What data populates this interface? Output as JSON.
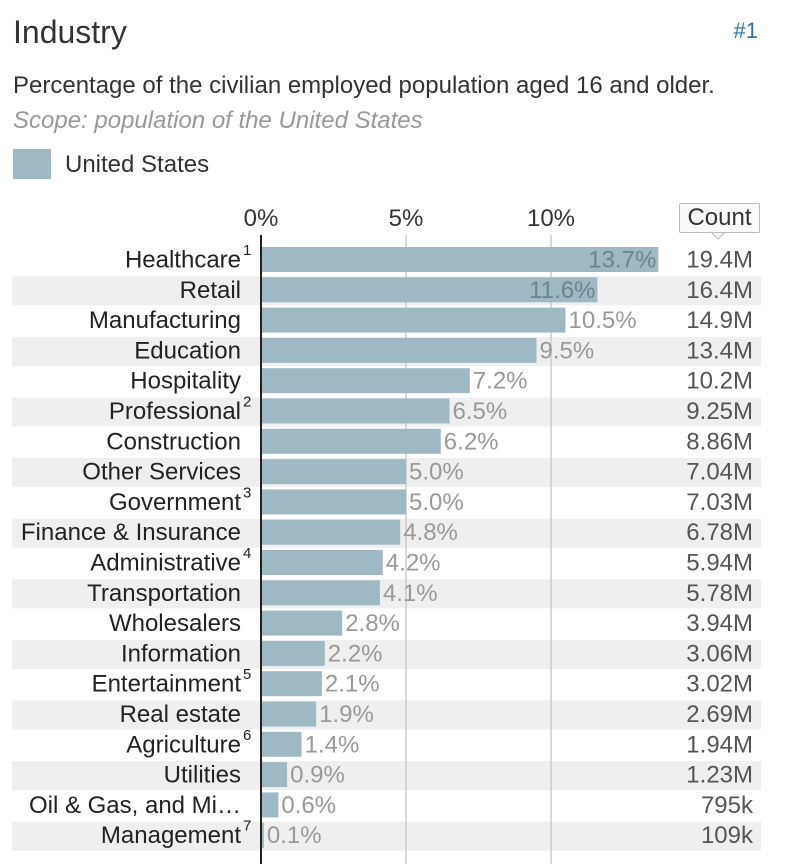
{
  "header": {
    "title": "Industry",
    "rank": "#1",
    "subtitle": "Percentage of the civilian employed population aged 16 and older.",
    "scope": "Scope: population of the United States"
  },
  "legend": {
    "label": "United States",
    "color": "#9fb9c4"
  },
  "count_header": "Count",
  "chart_data": {
    "type": "bar",
    "orientation": "horizontal",
    "x_ticks": [
      "0%",
      "5%",
      "10%"
    ],
    "x_tick_values": [
      0,
      5,
      10
    ],
    "categories": [
      "Healthcare",
      "Retail",
      "Manufacturing",
      "Education",
      "Hospitality",
      "Professional",
      "Construction",
      "Other Services",
      "Government",
      "Finance & Insurance",
      "Administrative",
      "Transportation",
      "Wholesalers",
      "Information",
      "Entertainment",
      "Real estate",
      "Agriculture",
      "Utilities",
      "Oil & Gas, and Mi…",
      "Management"
    ],
    "footnotes": [
      "1",
      "",
      "",
      "",
      "",
      "2",
      "",
      "",
      "3",
      "",
      "4",
      "",
      "",
      "",
      "5",
      "",
      "6",
      "",
      "",
      "7"
    ],
    "series": [
      {
        "name": "United States",
        "values": [
          13.7,
          11.6,
          10.5,
          9.5,
          7.2,
          6.5,
          6.2,
          5.0,
          5.0,
          4.8,
          4.2,
          4.1,
          2.8,
          2.2,
          2.1,
          1.9,
          1.4,
          0.9,
          0.6,
          0.1
        ],
        "value_labels": [
          "13.7%",
          "11.6%",
          "10.5%",
          "9.5%",
          "7.2%",
          "6.5%",
          "6.2%",
          "5.0%",
          "5.0%",
          "4.8%",
          "4.2%",
          "4.1%",
          "2.8%",
          "2.2%",
          "2.1%",
          "1.9%",
          "1.4%",
          "0.9%",
          "0.6%",
          "0.1%"
        ],
        "counts": [
          "19.4M",
          "16.4M",
          "14.9M",
          "13.4M",
          "10.2M",
          "9.25M",
          "8.86M",
          "7.04M",
          "7.03M",
          "6.78M",
          "5.94M",
          "5.78M",
          "3.94M",
          "3.06M",
          "3.02M",
          "2.69M",
          "1.94M",
          "1.23M",
          "795k",
          "109k"
        ]
      }
    ],
    "xlim": [
      0,
      14
    ],
    "grid": true,
    "colors": {
      "bar": "#9fb9c4",
      "value_inside": "#6f838c",
      "value_outside": "#999999",
      "stripe": "#efefef",
      "grid": "#cccccc",
      "axis": "#222222"
    }
  }
}
